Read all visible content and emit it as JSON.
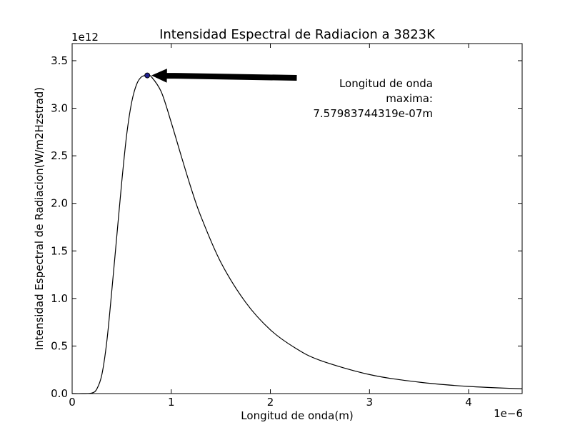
{
  "chart_data": {
    "type": "line",
    "title": "Intensidad Espectral de Radiacion a 3823K",
    "xlabel": "Longitud de onda(m)",
    "ylabel": "Intensidad Espectral de Radiacion(W/m2Hzstrad)",
    "x_offset_label": "1e−6",
    "y_offset_label": "1e12",
    "xlim": [
      0,
      4.54e-06
    ],
    "ylim": [
      0,
      3680000000000.0
    ],
    "x_ticks": [
      0,
      1e-06,
      2e-06,
      3e-06,
      4e-06
    ],
    "x_tick_labels": [
      "0",
      "1",
      "2",
      "3",
      "4"
    ],
    "y_ticks": [
      0,
      500000000000.0,
      1000000000000.0,
      1500000000000.0,
      2000000000000.0,
      2500000000000.0,
      3000000000000.0,
      3500000000000.0
    ],
    "y_tick_labels": [
      "0.0",
      "0.5",
      "1.0",
      "1.5",
      "2.0",
      "2.5",
      "3.0",
      "3.5"
    ],
    "grid": false,
    "series": [
      {
        "x": [
          0,
          1e-07,
          2e-07,
          2.5e-07,
          3e-07,
          3.5e-07,
          4e-07,
          4.5e-07,
          5e-07,
          5.5e-07,
          6e-07,
          6.5e-07,
          7e-07,
          7.58e-07,
          8e-07,
          9e-07,
          1e-06,
          1.1e-06,
          1.2e-06,
          1.3e-06,
          1.5e-06,
          1.75e-06,
          2e-06,
          2.25e-06,
          2.5e-06,
          3e-06,
          3.5e-06,
          4e-06,
          4.54e-06
        ],
        "y": [
          0,
          0,
          6000000000.0,
          50000000000.0,
          200000000000.0,
          550000000000.0,
          1080000000000.0,
          1650000000000.0,
          2220000000000.0,
          2720000000000.0,
          3060000000000.0,
          3250000000000.0,
          3330000000000.0,
          3345000000000.0,
          3330000000000.0,
          3170000000000.0,
          2850000000000.0,
          2500000000000.0,
          2160000000000.0,
          1860000000000.0,
          1380000000000.0,
          960000000000.0,
          670000000000.0,
          480000000000.0,
          350000000000.0,
          200000000000.0,
          120000000000.0,
          75000000000.0,
          50000000000.0
        ]
      }
    ],
    "peak_point": {
      "x": 7.57983744319e-07,
      "y": 3345000000000.0
    },
    "annotation": {
      "lines": [
        "Longitud de onda",
        "maxima:",
        "7.57983744319e-07m"
      ]
    }
  }
}
